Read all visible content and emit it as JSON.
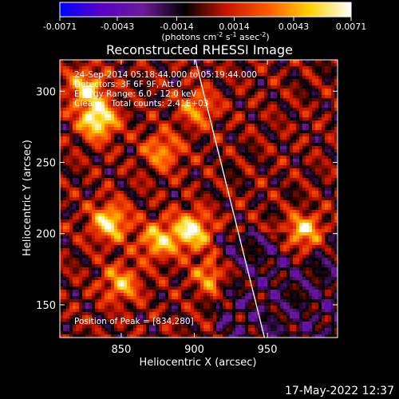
{
  "chart_data": {
    "type": "heatmap",
    "title": "Reconstructed RHESSI Image",
    "xlabel": "Heliocentric X (arcsec)",
    "ylabel": "Heliocentric Y (arcsec)",
    "xlim": [
      808,
      998
    ],
    "ylim": [
      127,
      322
    ],
    "x_ticks": [
      850,
      900,
      950
    ],
    "y_ticks": [
      150,
      200,
      250,
      300
    ],
    "colorbar": {
      "label_pre": "(photons cm",
      "label_sup1": "-2",
      "label_mid1": " s",
      "label_sup2": "-1",
      "label_mid2": " asec",
      "label_sup3": "-2",
      "label_post": ")",
      "range": [
        -0.0071,
        0.0071
      ],
      "tick_values": [
        -0.0071,
        -0.0043,
        -0.0014,
        0.0014,
        0.0043,
        0.0071
      ],
      "tick_labels": [
        "-0.0071",
        "-0.0043",
        "-0.0014",
        "0.0014",
        "0.0043",
        "0.0071"
      ],
      "colors": [
        "#0000ff",
        "#5a00c8",
        "#6b1a9a",
        "#000000",
        "#c81400",
        "#ff5a00",
        "#ffd200",
        "#ffffff"
      ]
    },
    "annotations": [
      "24-Sep-2014 05:18:44.000 to 05:19:44.000",
      "Detectors: 3F 6F 9F, Att 0",
      "Energy Range: 6.0 - 12.0 keV",
      "Clean     Total counts: 2.41E+03"
    ],
    "peak_label": "Position of Peak = [834,280]",
    "peak": [
      834,
      280
    ],
    "limb_line": [
      [
        900,
        325
      ],
      [
        948,
        127
      ]
    ],
    "bright_sources": [
      {
        "x": 834,
        "y": 280,
        "value": 0.0071
      },
      {
        "x": 826,
        "y": 302,
        "value": 0.0055
      },
      {
        "x": 898,
        "y": 202,
        "value": 0.0065
      },
      {
        "x": 842,
        "y": 208,
        "value": 0.006
      },
      {
        "x": 875,
        "y": 195,
        "value": 0.005
      },
      {
        "x": 878,
        "y": 258,
        "value": 0.004
      },
      {
        "x": 975,
        "y": 200,
        "value": 0.0062
      },
      {
        "x": 850,
        "y": 165,
        "value": 0.0045
      },
      {
        "x": 912,
        "y": 170,
        "value": 0.004
      },
      {
        "x": 902,
        "y": 288,
        "value": 0.0038
      }
    ]
  },
  "footer": {
    "timestamp": "17-May-2022 12:37"
  }
}
